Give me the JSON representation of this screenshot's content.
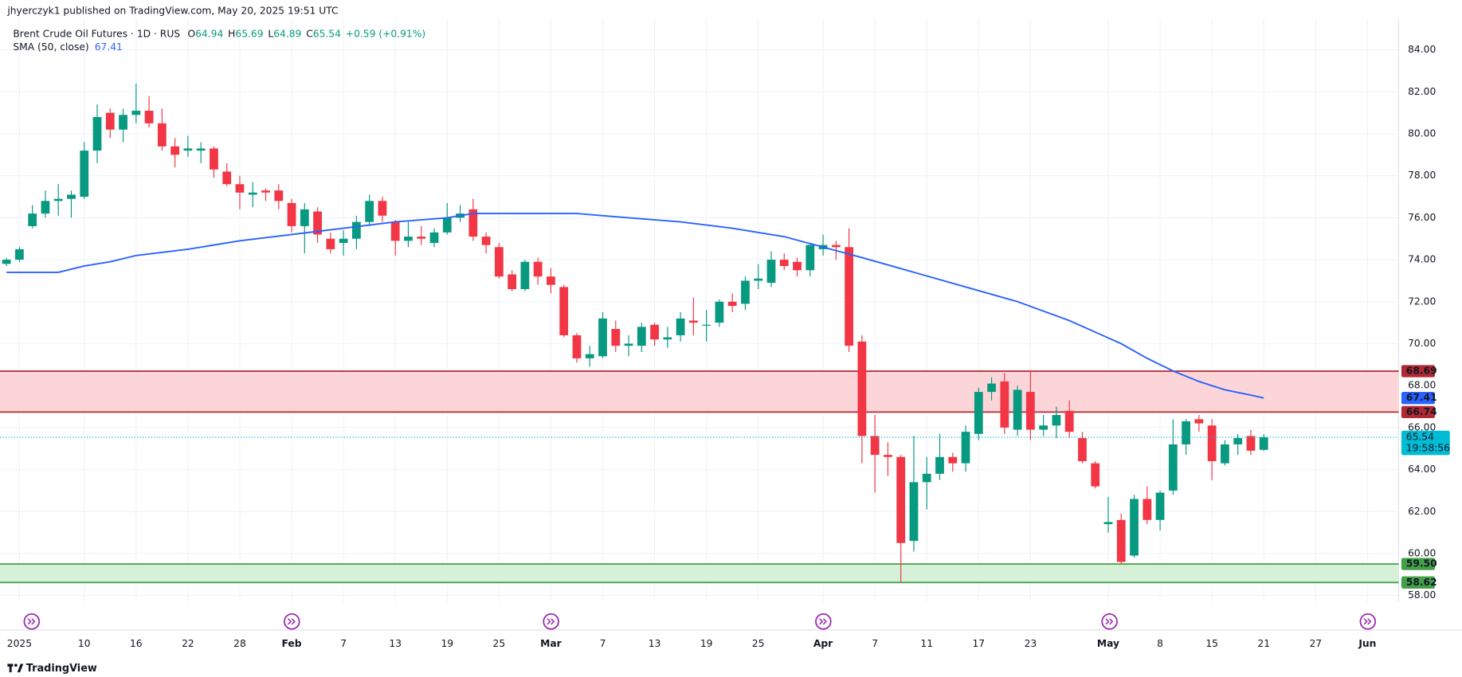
{
  "header": {
    "publisher": "jhyerczyk1 published on TradingView.com, May 20, 2025 19:51 UTC"
  },
  "footer": {
    "brand": "TradingView"
  },
  "chart_data": {
    "type": "candlestick",
    "title": "Brent Crude Oil Futures · 1D · RUS",
    "ohlc_labels": [
      "O",
      "H",
      "L",
      "C"
    ],
    "change": "+0.59 (+0.91%)",
    "countdown": "19:58:56",
    "up_color": "#089981",
    "down_color": "#f23645",
    "open": [
      73.8,
      74.0,
      75.6,
      76.2,
      76.8,
      76.9,
      77.0,
      79.2,
      81.0,
      80.2,
      80.9,
      81.1,
      80.5,
      79.4,
      79.2,
      79.2,
      79.3,
      78.2,
      77.6,
      77.1,
      77.3,
      77.3,
      76.7,
      75.6,
      76.3,
      75.0,
      74.8,
      75.0,
      75.8,
      76.8,
      75.8,
      74.9,
      75.1,
      74.8,
      75.3,
      76.0,
      76.4,
      75.1,
      74.6,
      73.3,
      72.6,
      73.9,
      73.2,
      72.7,
      70.4,
      69.3,
      69.4,
      70.7,
      69.9,
      69.9,
      70.9,
      70.2,
      70.4,
      71.1,
      70.9,
      71.0,
      72.0,
      71.9,
      73.0,
      72.9,
      74.0,
      73.9,
      73.5,
      74.5,
      74.7,
      74.6,
      70.1,
      65.6,
      64.7,
      64.6,
      60.6,
      63.4,
      63.8,
      64.6,
      64.3,
      65.7,
      67.7,
      68.2,
      65.9,
      67.7,
      65.9,
      66.1,
      66.8,
      65.5,
      64.3,
      61.4,
      61.6,
      59.9,
      62.6,
      61.6,
      63.0,
      65.2,
      66.4,
      66.1,
      64.3,
      65.2,
      65.6,
      64.94
    ],
    "high": [
      74.1,
      74.6,
      76.6,
      77.3,
      77.6,
      77.3,
      79.6,
      81.4,
      81.2,
      81.2,
      82.4,
      81.8,
      81.2,
      79.8,
      79.9,
      79.6,
      79.4,
      78.6,
      78.0,
      77.7,
      77.4,
      77.6,
      76.9,
      76.7,
      76.5,
      75.3,
      75.4,
      76.1,
      77.1,
      77.0,
      75.9,
      75.8,
      75.6,
      75.5,
      76.7,
      76.6,
      76.9,
      75.3,
      74.8,
      73.5,
      74.0,
      74.1,
      73.6,
      72.8,
      70.5,
      69.9,
      71.5,
      71.1,
      70.4,
      71.0,
      71.0,
      70.8,
      71.5,
      72.2,
      71.6,
      72.1,
      72.4,
      73.2,
      73.8,
      74.4,
      74.3,
      74.1,
      74.8,
      75.2,
      74.9,
      75.5,
      70.4,
      66.6,
      65.3,
      64.7,
      65.6,
      64.6,
      65.7,
      64.8,
      66.1,
      67.9,
      68.4,
      68.6,
      68.0,
      68.7,
      66.6,
      67.0,
      67.3,
      65.8,
      64.4,
      62.7,
      61.9,
      62.8,
      63.2,
      63.0,
      66.4,
      66.4,
      66.6,
      66.4,
      65.4,
      65.7,
      65.9,
      65.69
    ],
    "low": [
      73.7,
      73.9,
      75.5,
      76.0,
      76.1,
      76.0,
      76.9,
      78.6,
      79.8,
      79.6,
      80.5,
      80.3,
      79.2,
      78.4,
      78.9,
      78.6,
      77.9,
      77.5,
      76.4,
      76.5,
      76.8,
      76.4,
      75.3,
      74.3,
      74.8,
      74.3,
      74.2,
      74.5,
      75.6,
      75.8,
      74.2,
      74.6,
      74.7,
      74.6,
      75.2,
      75.8,
      74.9,
      74.3,
      73.1,
      72.5,
      72.5,
      72.8,
      72.4,
      70.3,
      69.1,
      68.9,
      69.3,
      69.6,
      69.4,
      69.6,
      69.9,
      69.8,
      70.1,
      70.4,
      70.1,
      70.8,
      71.5,
      71.6,
      72.6,
      72.7,
      73.5,
      73.2,
      73.2,
      74.2,
      74.0,
      69.6,
      64.3,
      62.9,
      63.7,
      58.6,
      60.1,
      62.1,
      63.5,
      63.9,
      63.9,
      65.4,
      67.3,
      65.7,
      65.6,
      65.4,
      65.6,
      65.5,
      65.5,
      64.3,
      63.1,
      61.0,
      59.5,
      59.8,
      61.4,
      61.1,
      62.8,
      64.7,
      65.8,
      63.5,
      64.2,
      64.7,
      64.7,
      64.89
    ],
    "close": [
      74.0,
      74.5,
      76.2,
      76.8,
      76.9,
      77.1,
      79.2,
      80.8,
      80.2,
      80.9,
      81.1,
      80.5,
      79.4,
      79.0,
      79.3,
      79.3,
      78.3,
      77.6,
      77.2,
      77.2,
      77.2,
      76.8,
      75.6,
      76.4,
      75.2,
      74.5,
      75.0,
      75.8,
      76.8,
      76.1,
      74.9,
      75.1,
      75.0,
      75.3,
      76.0,
      76.2,
      75.1,
      74.7,
      73.2,
      72.6,
      73.9,
      73.2,
      72.8,
      70.4,
      69.3,
      69.5,
      71.2,
      69.9,
      70.0,
      70.8,
      70.2,
      70.3,
      71.2,
      71.0,
      70.9,
      72.0,
      71.8,
      73.0,
      73.1,
      74.0,
      73.7,
      73.5,
      74.7,
      74.7,
      74.6,
      69.9,
      65.6,
      64.7,
      64.6,
      60.5,
      63.4,
      63.8,
      64.6,
      64.3,
      65.8,
      67.7,
      68.1,
      66.0,
      67.8,
      65.9,
      66.1,
      66.6,
      65.8,
      64.4,
      63.2,
      61.5,
      59.6,
      62.6,
      61.6,
      62.9,
      65.2,
      66.3,
      66.2,
      64.4,
      65.2,
      65.5,
      64.9,
      65.54
    ],
    "sma": {
      "name": "SMA (50, close)",
      "color": "#2962ff",
      "x": [
        0,
        4,
        6,
        8,
        10,
        14,
        18,
        22,
        26,
        30,
        34,
        36,
        40,
        44,
        48,
        52,
        56,
        60,
        63,
        66,
        70,
        74,
        78,
        82,
        86,
        88,
        90,
        92,
        94,
        96,
        97
      ],
      "values": [
        73.4,
        73.4,
        73.7,
        73.9,
        74.2,
        74.5,
        74.9,
        75.2,
        75.5,
        75.8,
        76.0,
        76.2,
        76.2,
        76.2,
        76.0,
        75.8,
        75.5,
        75.1,
        74.6,
        74.1,
        73.4,
        72.7,
        72.0,
        71.1,
        70.0,
        69.3,
        68.7,
        68.2,
        67.8,
        67.55,
        67.41
      ]
    },
    "zones": [
      {
        "top": 68.69,
        "bottom": 66.74,
        "color": "#b22833",
        "fill": "#fcd5d8"
      },
      {
        "top": {
          "value": 59.5,
          "label": "59.50"
        },
        "bottom": 58.62,
        "color": "#43a047",
        "fill": "#d7f0d8"
      }
    ],
    "last_color": "#00bcd4",
    "xlim": [
      -0.5,
      107.4
    ],
    "ylim": [
      57.7,
      85.48
    ],
    "grid": true,
    "xticks": [
      {
        "value": 1,
        "label": "2025"
      },
      {
        "value": 6,
        "label": "10"
      },
      {
        "value": 10,
        "label": "16"
      },
      {
        "value": 14,
        "label": "22"
      },
      {
        "value": 18,
        "label": "28"
      },
      {
        "value": 22,
        "label": "Feb"
      },
      {
        "value": 26,
        "label": "7"
      },
      {
        "value": 30,
        "label": "13"
      },
      {
        "value": 34,
        "label": "19"
      },
      {
        "value": 38,
        "label": "25"
      },
      {
        "value": 42,
        "label": "Mar"
      },
      {
        "value": 46,
        "label": "7"
      },
      {
        "value": 50,
        "label": "13"
      },
      {
        "value": 54,
        "label": "19"
      },
      {
        "value": 58,
        "label": "25"
      },
      {
        "value": 63,
        "label": "Apr"
      },
      {
        "value": 67,
        "label": "7"
      },
      {
        "value": 71,
        "label": "11"
      },
      {
        "value": 75,
        "label": "17"
      },
      {
        "value": 79,
        "label": "23"
      },
      {
        "value": 85,
        "label": "May"
      },
      {
        "value": 89,
        "label": "8"
      },
      {
        "value": 93,
        "label": "15"
      },
      {
        "value": 97,
        "label": "21"
      },
      {
        "value": 101,
        "label": "27"
      },
      {
        "value": 105,
        "label": "Jun"
      }
    ],
    "yticks": [
      {
        "value": 58,
        "label": "58.00"
      },
      {
        "value": 60,
        "label": "60.00"
      },
      {
        "value": 62,
        "label": "62.00"
      },
      {
        "value": 64,
        "label": "64.00"
      },
      {
        "value": 66,
        "label": "66.00"
      },
      {
        "value": 68,
        "label": "68.00"
      },
      {
        "value": 70,
        "label": "70.00"
      },
      {
        "value": 72,
        "label": "72.00"
      },
      {
        "value": 74,
        "label": "74.00"
      },
      {
        "value": 76,
        "label": "76.00"
      },
      {
        "value": 78,
        "label": "78.00"
      },
      {
        "value": 80,
        "label": "80.00"
      },
      {
        "value": 82,
        "label": "82.00"
      },
      {
        "value": 84,
        "label": "84.00"
      }
    ]
  }
}
